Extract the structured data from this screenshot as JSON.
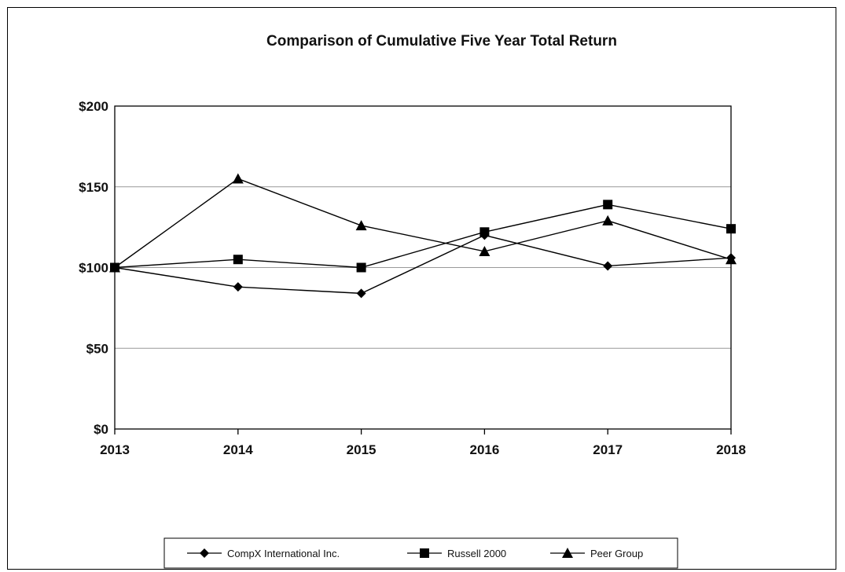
{
  "chart_data": {
    "type": "line",
    "title": "Comparison of Cumulative Five Year Total Return",
    "categories": [
      "2013",
      "2014",
      "2015",
      "2016",
      "2017",
      "2018"
    ],
    "ylim": [
      0,
      200
    ],
    "yticks": [
      0,
      50,
      100,
      150,
      200
    ],
    "ytick_labels": [
      "$0",
      "$50",
      "$100",
      "$150",
      "$200"
    ],
    "grid": true,
    "legend_position": "bottom",
    "series": [
      {
        "name": "CompX International Inc.",
        "marker": "diamond",
        "values": [
          100,
          88,
          84,
          120,
          101,
          106
        ]
      },
      {
        "name": "Russell 2000",
        "marker": "square",
        "values": [
          100,
          105,
          100,
          122,
          139,
          124
        ]
      },
      {
        "name": "Peer Group",
        "marker": "triangle",
        "values": [
          100,
          155,
          126,
          110,
          129,
          105
        ]
      }
    ],
    "colors": {
      "line": "#000000",
      "grid": "#999999",
      "text": "#111111"
    }
  }
}
